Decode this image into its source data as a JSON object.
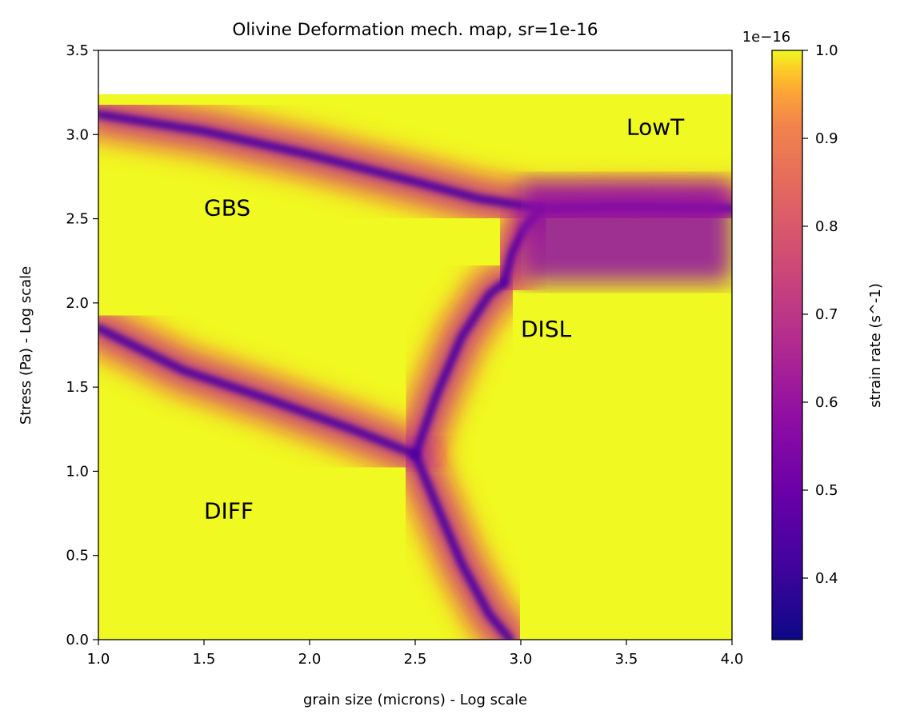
{
  "chart_data": {
    "type": "heatmap",
    "title": "Olivine Deformation mech. map, sr=1e-16",
    "xlabel": "grain size (microns) - Log scale",
    "ylabel": "Stress (Pa) - Log scale",
    "xlim": [
      1.0,
      4.0
    ],
    "ylim": [
      0.0,
      3.5
    ],
    "data_ymax": 3.24,
    "x_ticks": [
      "1.0",
      "1.5",
      "2.0",
      "2.5",
      "3.0",
      "3.5",
      "4.0"
    ],
    "y_ticks": [
      "0.0",
      "0.5",
      "1.0",
      "1.5",
      "2.0",
      "2.5",
      "3.0",
      "3.5"
    ],
    "colormap": "plasma",
    "colorbar": {
      "label": "strain rate (s^-1)",
      "offset_text": "1e−16",
      "range": [
        0.33,
        1.0
      ],
      "ticks": [
        "0.4",
        "0.5",
        "0.6",
        "0.7",
        "0.8",
        "0.9",
        "1.0"
      ]
    },
    "regions": [
      {
        "label": "LowT",
        "x": 3.5,
        "y": 3.0
      },
      {
        "label": "GBS",
        "x": 1.5,
        "y": 2.52
      },
      {
        "label": "DISL",
        "x": 3.0,
        "y": 1.8
      },
      {
        "label": "DIFF",
        "x": 1.5,
        "y": 0.72
      }
    ],
    "boundaries": {
      "gbs_lowt": [
        [
          1.0,
          3.12
        ],
        [
          1.5,
          3.02
        ],
        [
          2.0,
          2.88
        ],
        [
          2.5,
          2.72
        ],
        [
          2.8,
          2.62
        ],
        [
          3.1,
          2.56
        ],
        [
          3.5,
          2.57
        ],
        [
          4.0,
          2.56
        ]
      ],
      "gbs_disl": [
        [
          2.92,
          2.12
        ],
        [
          2.96,
          2.3
        ],
        [
          3.02,
          2.45
        ],
        [
          3.1,
          2.56
        ]
      ],
      "gbs_diff": [
        [
          1.0,
          1.85
        ],
        [
          1.4,
          1.6
        ],
        [
          1.8,
          1.43
        ],
        [
          2.2,
          1.25
        ],
        [
          2.5,
          1.1
        ]
      ],
      "diff_disl": [
        [
          2.5,
          1.1
        ],
        [
          2.6,
          1.45
        ],
        [
          2.72,
          1.8
        ],
        [
          2.85,
          2.05
        ],
        [
          2.92,
          2.12
        ]
      ],
      "diff_disl_low": [
        [
          2.5,
          1.1
        ],
        [
          2.6,
          0.8
        ],
        [
          2.72,
          0.45
        ],
        [
          2.85,
          0.15
        ],
        [
          2.95,
          0.0
        ]
      ]
    }
  }
}
